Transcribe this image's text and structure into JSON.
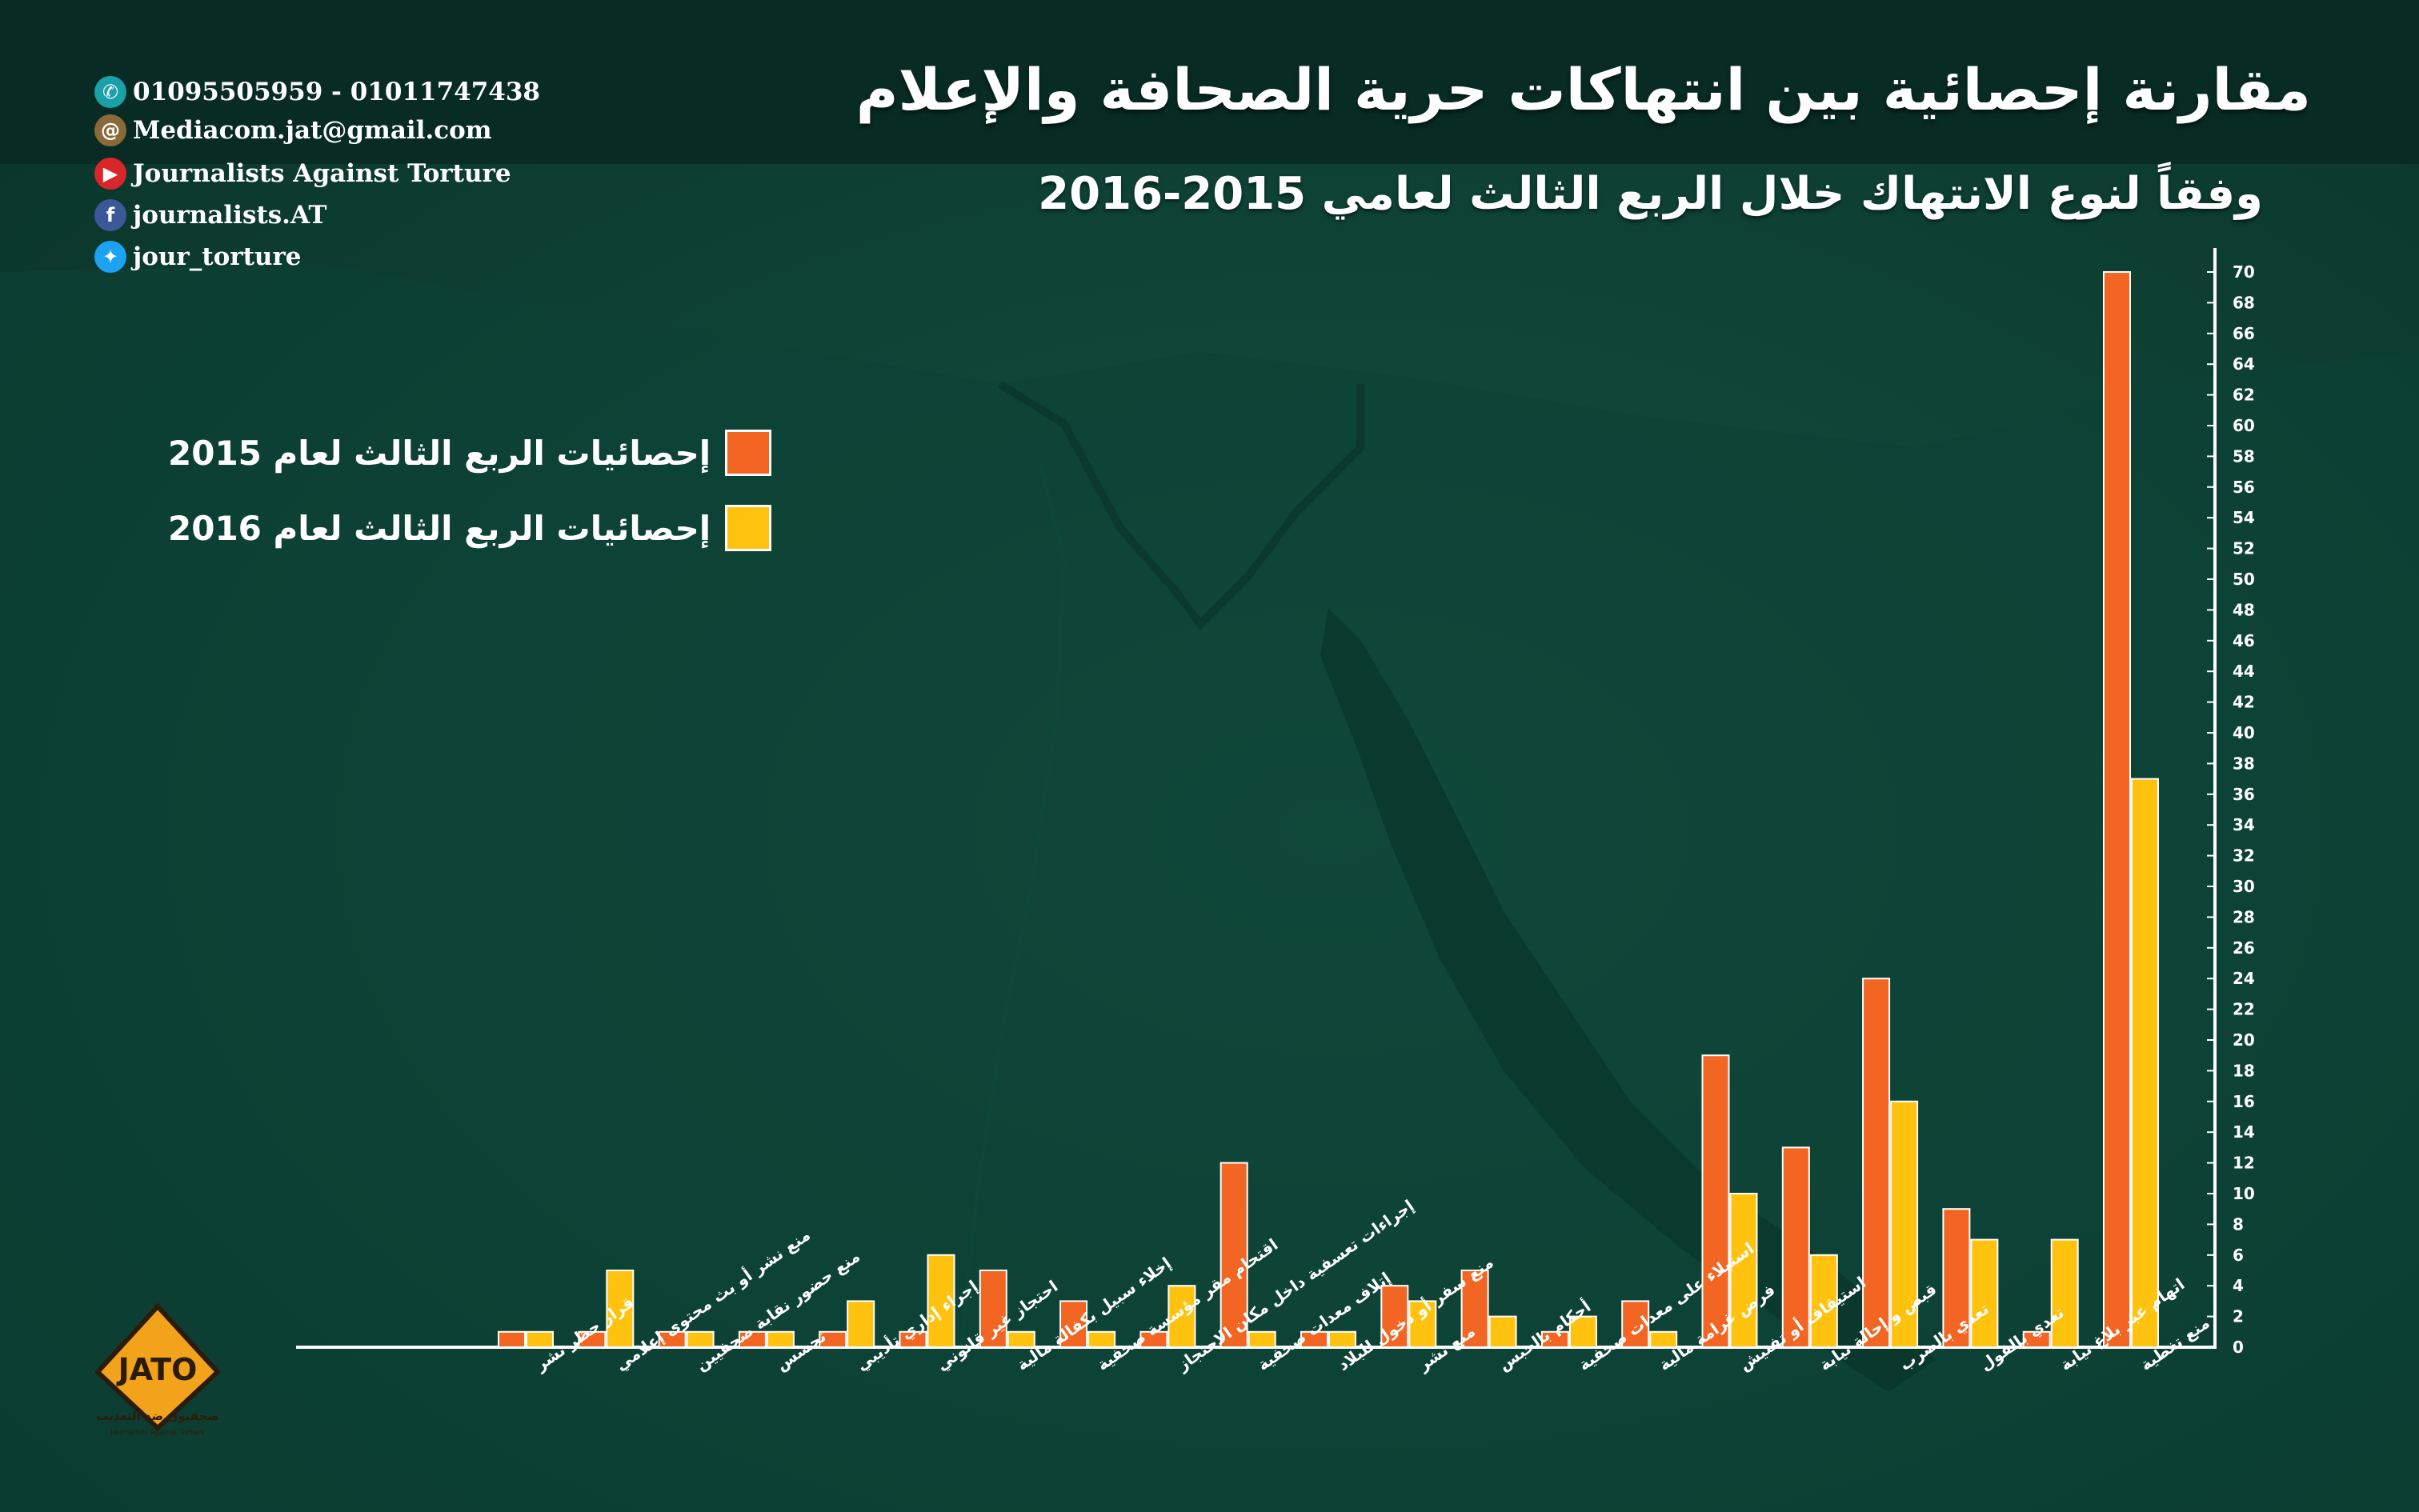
{
  "title": "مقارنة إحصائية بين انتهاكات حرية الصحافة والإعلام",
  "subtitle": "وفقاً لنوع الانتهاك خلال الربع الثالث لعامي 2015-2016",
  "contacts": [
    {
      "icon": "phone-icon",
      "text": "01095505959 - 01011747438",
      "color": "#1aa0a8"
    },
    {
      "icon": "at-icon",
      "text": "Mediacom.jat@gmail.com",
      "color": "#8a6a3a"
    },
    {
      "icon": "youtube-icon",
      "text": "Journalists Against Torture",
      "color": "#d8262a"
    },
    {
      "icon": "facebook-icon",
      "text": "journalists.AT",
      "color": "#3b5998"
    },
    {
      "icon": "twitter-icon",
      "text": "jour_torture",
      "color": "#1da1f2"
    }
  ],
  "logo": {
    "text": "JATO",
    "subtext": "صحفيون ضد التعذيب",
    "subtext2": "Journalists Against Torture"
  },
  "colors": {
    "series_2015": "#f26522",
    "series_2016": "#ffc20e",
    "axis": "#ffffff"
  },
  "chart_data": {
    "type": "bar",
    "title": "مقارنة إحصائية بين انتهاكات حرية الصحافة والإعلام",
    "subtitle": "وفقاً لنوع الانتهاك خلال الربع الثالث لعامي 2015-2016",
    "categories": [
      "منع تغطية",
      "اتهام عبر بلاغ نيابة",
      "تعدي بالقول",
      "تعدي بالضرب",
      "قبض و إحالة نيابة",
      "استيقاف أو تفتيش",
      "فرض غرامة مالية",
      "استيلاء على معدات صحفية",
      "أحكام بالحبس",
      "منع نشر",
      "منع سفر أو دخول للبلاد",
      "إتلاف معدات صحفية",
      "إجراءات تعسفية داخل مكان الاحتجاز",
      "اقتحام مقر مؤسسة صحفية",
      "إخلاء سبيل بكفالة مالية",
      "احتجاز غير قانوني",
      "إجراء إداري تأديبي",
      "تجسس",
      "منع حضور نقابة صحفيين",
      "منع نشر أو بث محتوى إعلامي",
      "قرار حظر نشر"
    ],
    "series": [
      {
        "name": "إحصائيات الربع الثالث لعام 2015",
        "values": [
          70,
          1,
          9,
          24,
          13,
          19,
          3,
          1,
          5,
          4,
          1,
          12,
          1,
          3,
          5,
          1,
          1,
          1,
          1,
          1,
          1
        ]
      },
      {
        "name": "إحصائيات الربع الثالث لعام 2016",
        "values": [
          37,
          7,
          7,
          16,
          6,
          10,
          1,
          2,
          2,
          3,
          1,
          1,
          4,
          1,
          1,
          6,
          3,
          1,
          1,
          5,
          1
        ]
      }
    ],
    "y_ticks": [
      0,
      2,
      4,
      6,
      8,
      10,
      12,
      14,
      16,
      18,
      20,
      22,
      24,
      26,
      28,
      30,
      32,
      34,
      36,
      38,
      40,
      42,
      44,
      46,
      48,
      50,
      52,
      54,
      56,
      58,
      60,
      62,
      64,
      66,
      68,
      70
    ],
    "ylim": [
      0,
      70
    ],
    "y_axis_side": "right",
    "legend_position": "top-left",
    "grid": false
  }
}
